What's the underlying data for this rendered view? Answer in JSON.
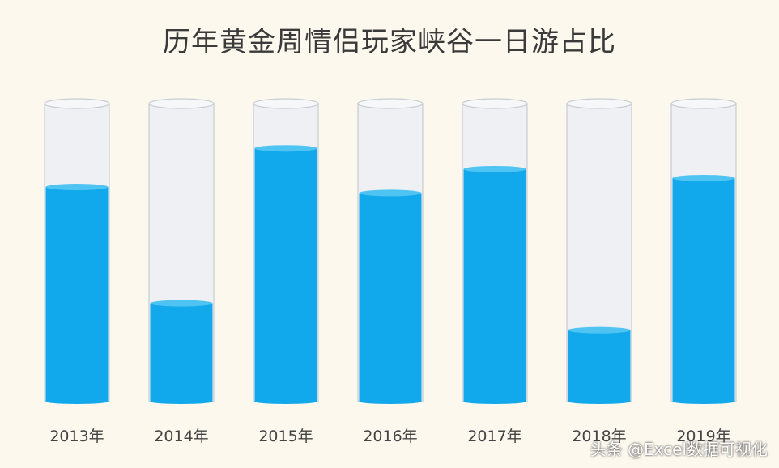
{
  "chart_data": {
    "type": "bar",
    "title": "历年黄金周情侣玩家峡谷一日游占比",
    "categories": [
      "2013年",
      "2014年",
      "2015年",
      "2016年",
      "2017年",
      "2018年",
      "2019年"
    ],
    "values": [
      72,
      33,
      85,
      70,
      78,
      24,
      75
    ],
    "ylim": [
      0,
      100
    ],
    "xlabel": "",
    "ylabel": "",
    "grid": false,
    "legend": "none",
    "colors": {
      "fill": "#12a9ec",
      "fill_top": "#4fc4f3",
      "tube": "#eef0f3",
      "tube_border": "#c7ccd3",
      "background": "#fdf8ee"
    }
  },
  "watermark": "头条 @Excel数据可视化"
}
